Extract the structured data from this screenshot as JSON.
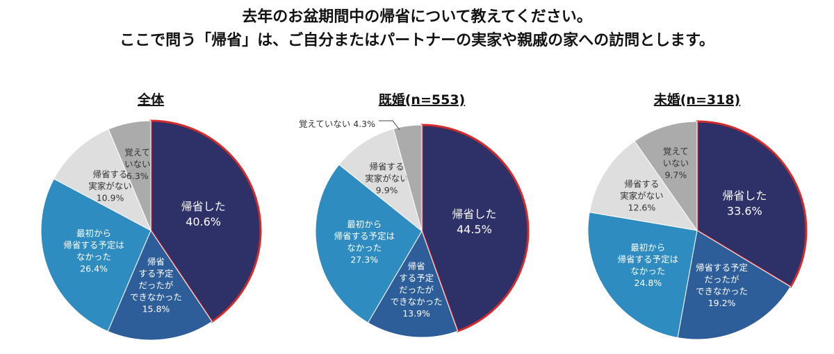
{
  "title_line1": "去年のお盆期間中の帰省について教えてください。",
  "title_line2": "ここで問う「帰省」は、ご自分またはパートナーの実家や親戚の家への訪問とします。",
  "colors": {
    "returned": "#2e3168",
    "planned_failed": "#2e5e9a",
    "no_plan": "#2f8cc0",
    "no_home": "#dedede",
    "dont_remember": "#ababab",
    "highlight_outline": "#d42a2a"
  },
  "chart_data": [
    {
      "type": "pie",
      "title": "全体",
      "categories": [
        "帰省した",
        "帰省する予定だったができなかった",
        "最初から帰省する予定はなかった",
        "帰省する実家がない",
        "覚えていない"
      ],
      "values": [
        40.6,
        15.8,
        26.4,
        10.9,
        6.3
      ],
      "labels": [
        [
          "帰省した",
          "40.6%"
        ],
        [
          "帰省",
          "する予定",
          "だったが",
          "できなかった",
          "15.8%"
        ],
        [
          "最初から",
          "帰省する予定は",
          "なかった",
          "26.4%"
        ],
        [
          "帰省する",
          "実家がない",
          "10.9%"
        ],
        [
          "覚えて",
          "いない",
          "6.3%"
        ]
      ]
    },
    {
      "type": "pie",
      "title": "既婚(n=553)",
      "categories": [
        "帰省した",
        "帰省する予定だったができなかった",
        "最初から帰省する予定はなかった",
        "帰省する実家がない",
        "覚えていない"
      ],
      "values": [
        44.5,
        13.9,
        27.3,
        9.9,
        4.3
      ],
      "labels": [
        [
          "帰省した",
          "44.5%"
        ],
        [
          "帰省",
          "する予定",
          "だったが",
          "できなかった",
          "13.9%"
        ],
        [
          "最初から",
          "帰省する予定は",
          "なかった",
          "27.3%"
        ],
        [
          "帰省する",
          "実家がない",
          "9.9%"
        ],
        [
          "覚えていない 4.3%"
        ]
      ]
    },
    {
      "type": "pie",
      "title": "未婚(n=318)",
      "categories": [
        "帰省した",
        "帰省する予定だったができなかった",
        "最初から帰省する予定はなかった",
        "帰省する実家がない",
        "覚えていない"
      ],
      "values": [
        33.6,
        19.2,
        24.8,
        12.6,
        9.7
      ],
      "labels": [
        [
          "帰省した",
          "33.6%"
        ],
        [
          "帰省する予定",
          "だったが",
          "できなかった",
          "19.2%"
        ],
        [
          "最初から",
          "帰省する予定は",
          "なかった",
          "24.8%"
        ],
        [
          "帰省する",
          "実家がない",
          "12.6%"
        ],
        [
          "覚えて",
          "いない",
          "9.7%"
        ]
      ]
    }
  ]
}
